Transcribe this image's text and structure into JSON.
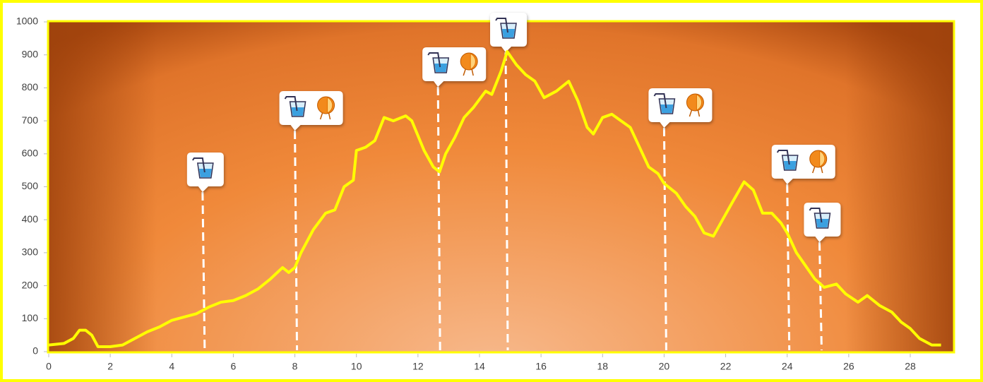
{
  "chart_data": {
    "type": "line",
    "x": [
      0,
      0.5,
      0.8,
      1.0,
      1.2,
      1.4,
      1.6,
      2,
      2.4,
      2.8,
      3.2,
      3.6,
      4,
      4.4,
      4.8,
      5.2,
      5.6,
      6,
      6.4,
      6.8,
      7.2,
      7.6,
      7.8,
      8.0,
      8.2,
      8.6,
      9,
      9.3,
      9.6,
      9.9,
      10.0,
      10.3,
      10.6,
      10.9,
      11.2,
      11.6,
      11.8,
      12.2,
      12.5,
      12.7,
      12.9,
      13.2,
      13.5,
      13.8,
      14.2,
      14.4,
      14.7,
      14.9,
      15.2,
      15.5,
      15.8,
      16.1,
      16.5,
      16.9,
      17.2,
      17.5,
      17.7,
      18.0,
      18.3,
      18.6,
      18.9,
      19.2,
      19.5,
      19.8,
      20.0,
      20.4,
      20.7,
      21.0,
      21.3,
      21.6,
      21.9,
      22.2,
      22.6,
      22.9,
      23.2,
      23.5,
      23.8,
      24.0,
      24.3,
      24.6,
      24.9,
      25.2,
      25.6,
      25.9,
      26.3,
      26.6,
      27.0,
      27.4,
      27.7,
      28.0,
      28.3,
      28.7,
      29.0
    ],
    "series": [
      {
        "color": "#ffff00",
        "values": [
          20,
          25,
          40,
          65,
          65,
          50,
          15,
          15,
          20,
          40,
          60,
          75,
          95,
          105,
          115,
          135,
          150,
          155,
          170,
          190,
          220,
          255,
          240,
          255,
          300,
          370,
          420,
          430,
          500,
          520,
          610,
          620,
          640,
          710,
          700,
          715,
          700,
          610,
          560,
          545,
          600,
          650,
          710,
          740,
          790,
          780,
          850,
          910,
          870,
          840,
          820,
          770,
          790,
          820,
          760,
          680,
          660,
          710,
          720,
          700,
          680,
          620,
          560,
          540,
          510,
          480,
          440,
          410,
          360,
          350,
          400,
          450,
          515,
          490,
          420,
          420,
          390,
          360,
          300,
          260,
          220,
          195,
          205,
          175,
          150,
          170,
          140,
          120,
          90,
          70,
          40,
          20,
          20
        ]
      }
    ],
    "xlim": [
      0,
      29.4
    ],
    "ylim": [
      0,
      1000
    ],
    "xticks": [
      0,
      2,
      4,
      6,
      8,
      10,
      12,
      14,
      16,
      18,
      20,
      22,
      24,
      26,
      28
    ],
    "yticks": [
      0,
      100,
      200,
      300,
      400,
      500,
      600,
      700,
      800,
      900,
      1000
    ],
    "stations": [
      {
        "x": 5,
        "water": true,
        "orange": false
      },
      {
        "x": 8,
        "water": true,
        "orange": true
      },
      {
        "x": 12.65,
        "water": true,
        "orange": true
      },
      {
        "x": 14.85,
        "water": true,
        "orange": false
      },
      {
        "x": 20,
        "water": true,
        "orange": true
      },
      {
        "x": 24,
        "water": true,
        "orange": true
      },
      {
        "x": 25.05,
        "water": true,
        "orange": false
      }
    ]
  }
}
